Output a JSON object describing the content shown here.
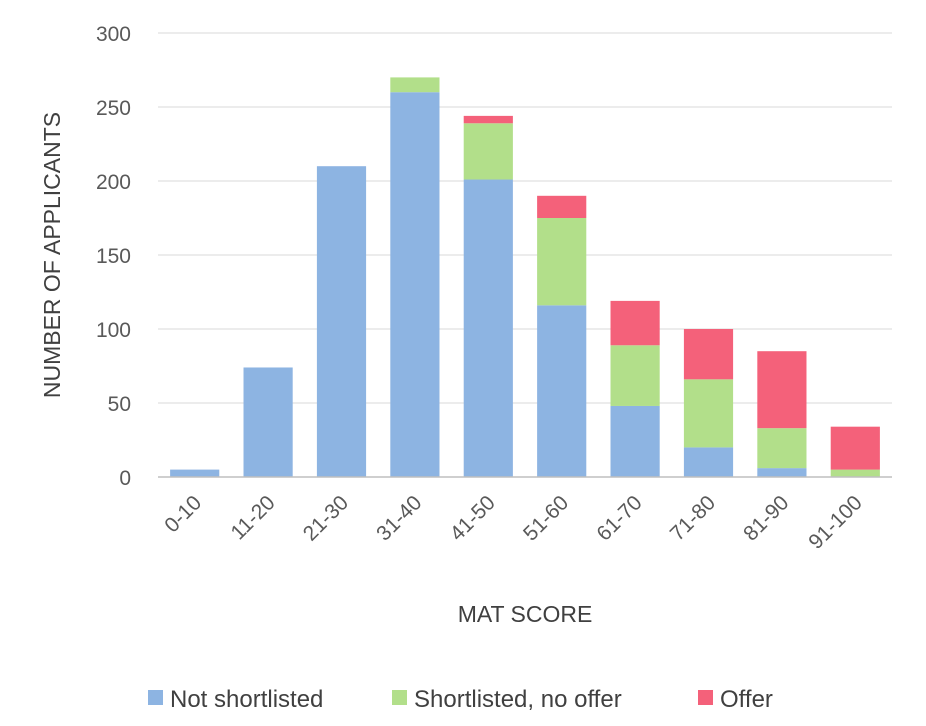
{
  "chart_data": {
    "type": "bar",
    "stacked": true,
    "categories": [
      "0-10",
      "11-20",
      "21-30",
      "31-40",
      "41-50",
      "51-60",
      "61-70",
      "71-80",
      "81-90",
      "91-100"
    ],
    "series": [
      {
        "name": "Not shortlisted",
        "color": "#8db4e2",
        "values": [
          5,
          74,
          210,
          260,
          201,
          116,
          48,
          20,
          6,
          0
        ]
      },
      {
        "name": "Shortlisted, no offer",
        "color": "#b2df8a",
        "values": [
          0,
          0,
          0,
          10,
          38,
          59,
          41,
          46,
          27,
          5
        ]
      },
      {
        "name": "Offer",
        "color": "#f4617a",
        "values": [
          0,
          0,
          0,
          0,
          5,
          15,
          30,
          34,
          52,
          29
        ]
      }
    ],
    "xlabel": "MAT SCORE",
    "ylabel": "NUMBER OF APPLICANTS",
    "ylim": [
      0,
      300
    ],
    "yticks": [
      0,
      50,
      100,
      150,
      200,
      250,
      300
    ],
    "grid": true,
    "legend_position": "bottom"
  }
}
